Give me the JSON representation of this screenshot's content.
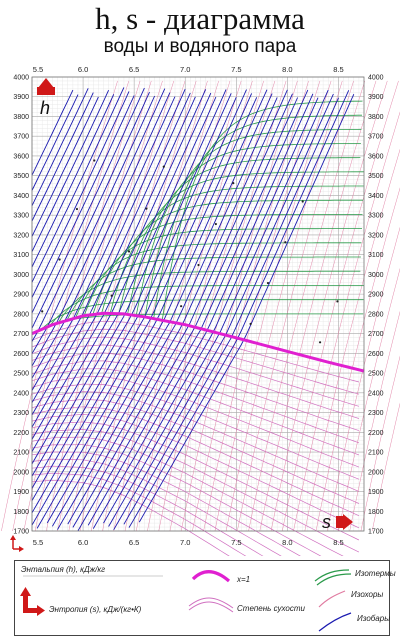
{
  "title": "h, s - диаграмма",
  "subtitle": "воды и водяного пара",
  "colors": {
    "isotherm": "#2a9a4a",
    "isochore": "#e07aa0",
    "isobar": "#1a1ab0",
    "saturation": "#e020d0",
    "dryness": "#d070c0",
    "grid": "#c8c8c8",
    "arrow": "#d01818"
  },
  "chart_data": {
    "type": "line",
    "xlabel": "s",
    "ylabel": "h",
    "xlim": [
      5.5,
      8.75
    ],
    "ylim": [
      1700,
      4000
    ],
    "x_ticks": [
      "5.5",
      "6.0",
      "6.5",
      "7.0",
      "7.5",
      "8.0",
      "8.5"
    ],
    "y_ticks": [
      "1700",
      "1800",
      "1900",
      "2000",
      "2100",
      "2200",
      "2300",
      "2400",
      "2500",
      "2600",
      "2700",
      "2800",
      "2900",
      "3000",
      "3100",
      "3200",
      "3300",
      "3400",
      "3500",
      "3600",
      "3700",
      "3800",
      "3900",
      "4000"
    ],
    "grid": true,
    "saturation_curve": {
      "x": [
        5.5,
        5.7,
        6.0,
        6.2,
        6.4,
        6.6,
        6.8,
        7.0,
        7.3,
        7.6,
        8.0,
        8.4,
        8.75
      ],
      "y": [
        2700,
        2745,
        2790,
        2803,
        2800,
        2785,
        2765,
        2745,
        2705,
        2665,
        2610,
        2555,
        2510
      ]
    }
  },
  "legend": {
    "enthalpy": "Энтальпия (h), кДж/кг",
    "entropy": "Энтропия (s), кДж/(кг•К)",
    "x1": "x=1",
    "dryness": "Степень сухости",
    "isotherms": "Изотермы",
    "isochores": "Изохоры",
    "isobars": "Изобары"
  }
}
